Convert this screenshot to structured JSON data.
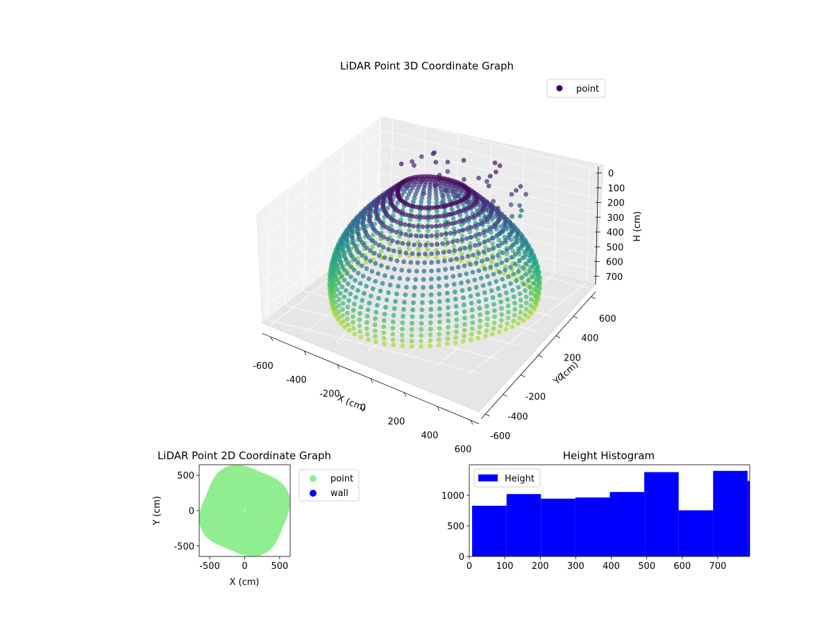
{
  "chart_data": [
    {
      "type": "scatter",
      "projection": "3d",
      "title": "LiDAR Point 3D Coordinate Graph",
      "xlabel": "X (cm)",
      "ylabel": "Y (cm)",
      "zlabel": "H (cm)",
      "xlim": [
        -650,
        650
      ],
      "ylim": [
        -650,
        650
      ],
      "zlim": [
        800,
        0
      ],
      "xticks": [
        -600,
        -400,
        -200,
        0,
        200,
        400,
        600
      ],
      "yticks": [
        -600,
        -400,
        -200,
        0,
        200,
        400,
        600
      ],
      "zticks": [
        0,
        100,
        200,
        300,
        400,
        500,
        600,
        700
      ],
      "z_inverted": true,
      "colormap": "viridis",
      "legend": {
        "labels": [
          "point"
        ],
        "placement": "upper-right",
        "marker_color": "#440154"
      },
      "grid": true
    },
    {
      "type": "scatter",
      "title": "LiDAR Point 2D Coordinate Graph",
      "xlabel": "X (cm)",
      "ylabel": "Y (cm)",
      "xlim": [
        -650,
        650
      ],
      "ylim": [
        -650,
        650
      ],
      "xticks": [
        -500,
        0,
        500
      ],
      "yticks": [
        -500,
        0,
        500
      ],
      "series": [
        {
          "name": "point",
          "color": "#90ee90"
        },
        {
          "name": "wall",
          "color": "#0000ff"
        }
      ],
      "legend": {
        "placement": "outside-right"
      },
      "grid": false
    },
    {
      "type": "bar",
      "title": "Height Histogram",
      "xlim": [
        0,
        790
      ],
      "ylim": [
        0,
        1500
      ],
      "xticks": [
        0,
        100,
        200,
        300,
        400,
        500,
        600,
        700
      ],
      "yticks": [
        0,
        500,
        1000
      ],
      "bin_edges": [
        8,
        105,
        202,
        299,
        396,
        493,
        590,
        687,
        784,
        800
      ],
      "values": [
        830,
        1020,
        945,
        965,
        1055,
        1380,
        755,
        1400,
        1235
      ],
      "series": [
        {
          "name": "Height",
          "color": "#0000ff"
        }
      ],
      "legend": {
        "placement": "upper-left"
      },
      "grid": false
    }
  ]
}
